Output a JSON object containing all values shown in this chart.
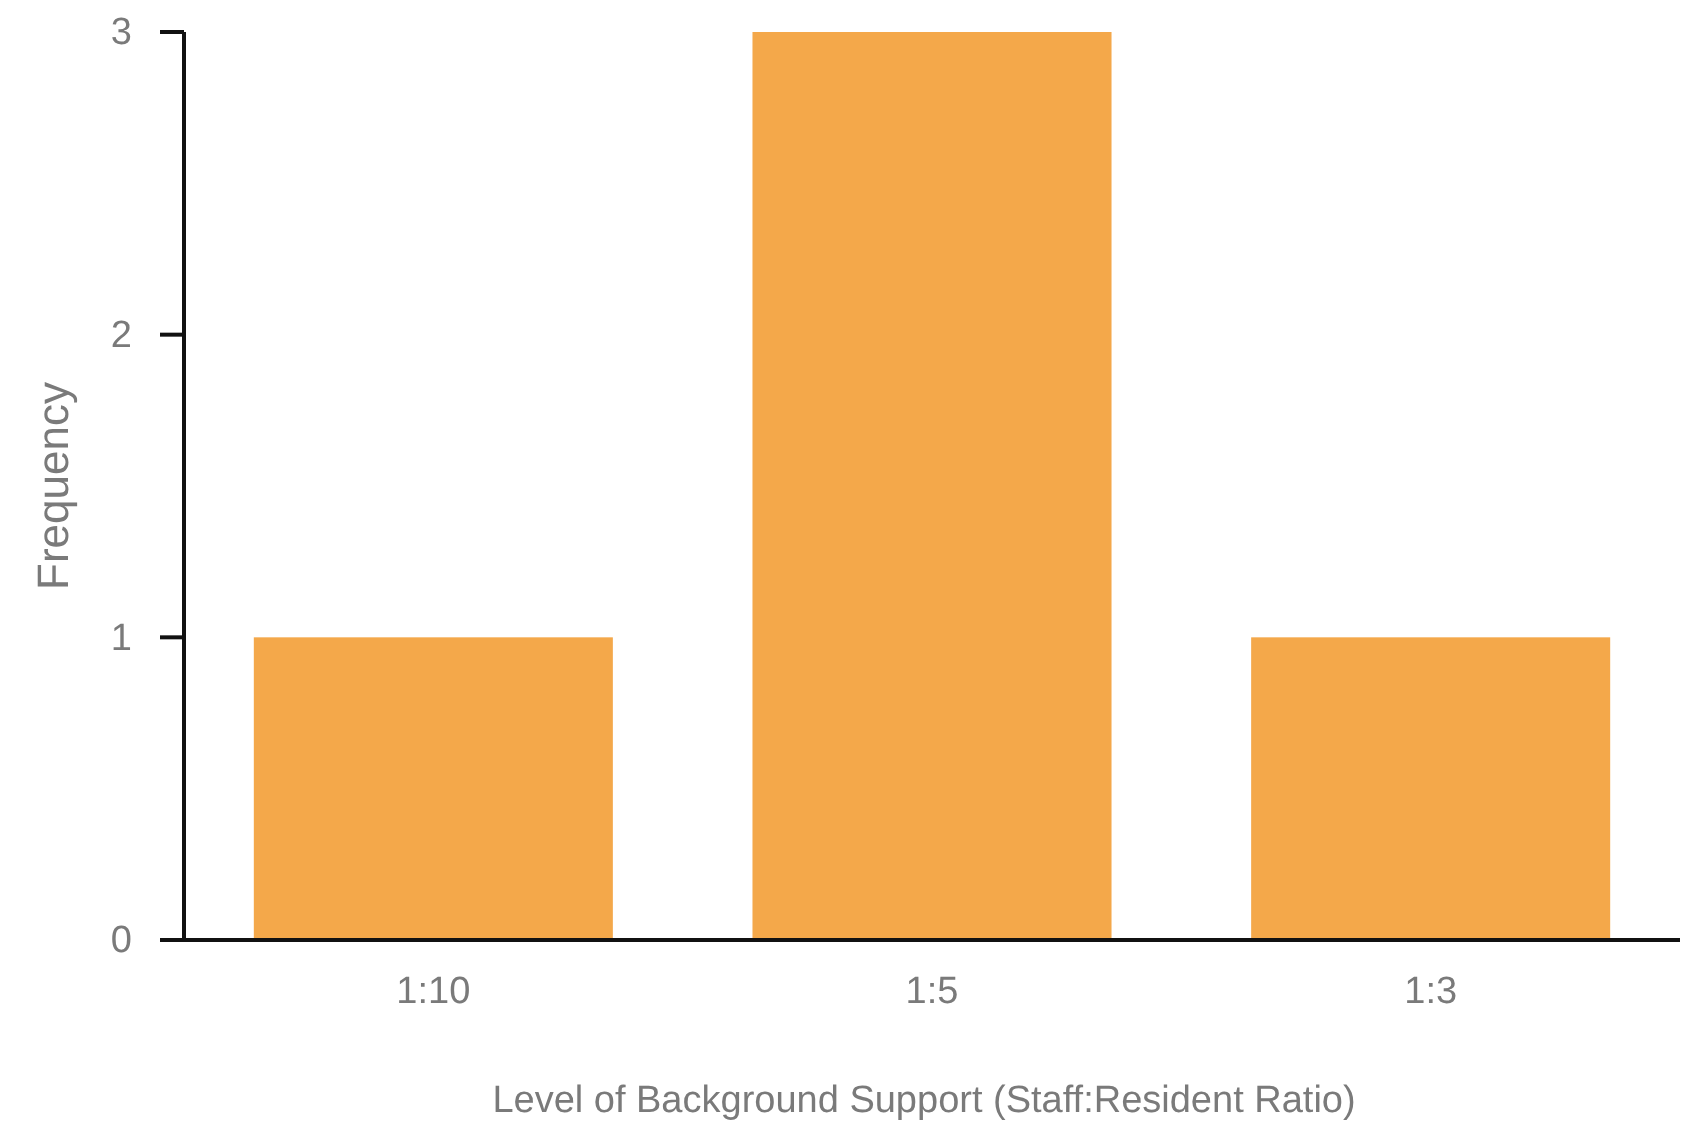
{
  "chart_data": {
    "type": "bar",
    "xlabel": "Level of Background Support (Staff:Resident Ratio)",
    "ylabel": "Frequency",
    "categories": [
      "1:10",
      "1:5",
      "1:3"
    ],
    "values": [
      1,
      3,
      1
    ],
    "color": "#f4a84a",
    "ylim": [
      0,
      3
    ],
    "yticks": [
      0,
      1,
      2,
      3
    ],
    "grid": false
  }
}
